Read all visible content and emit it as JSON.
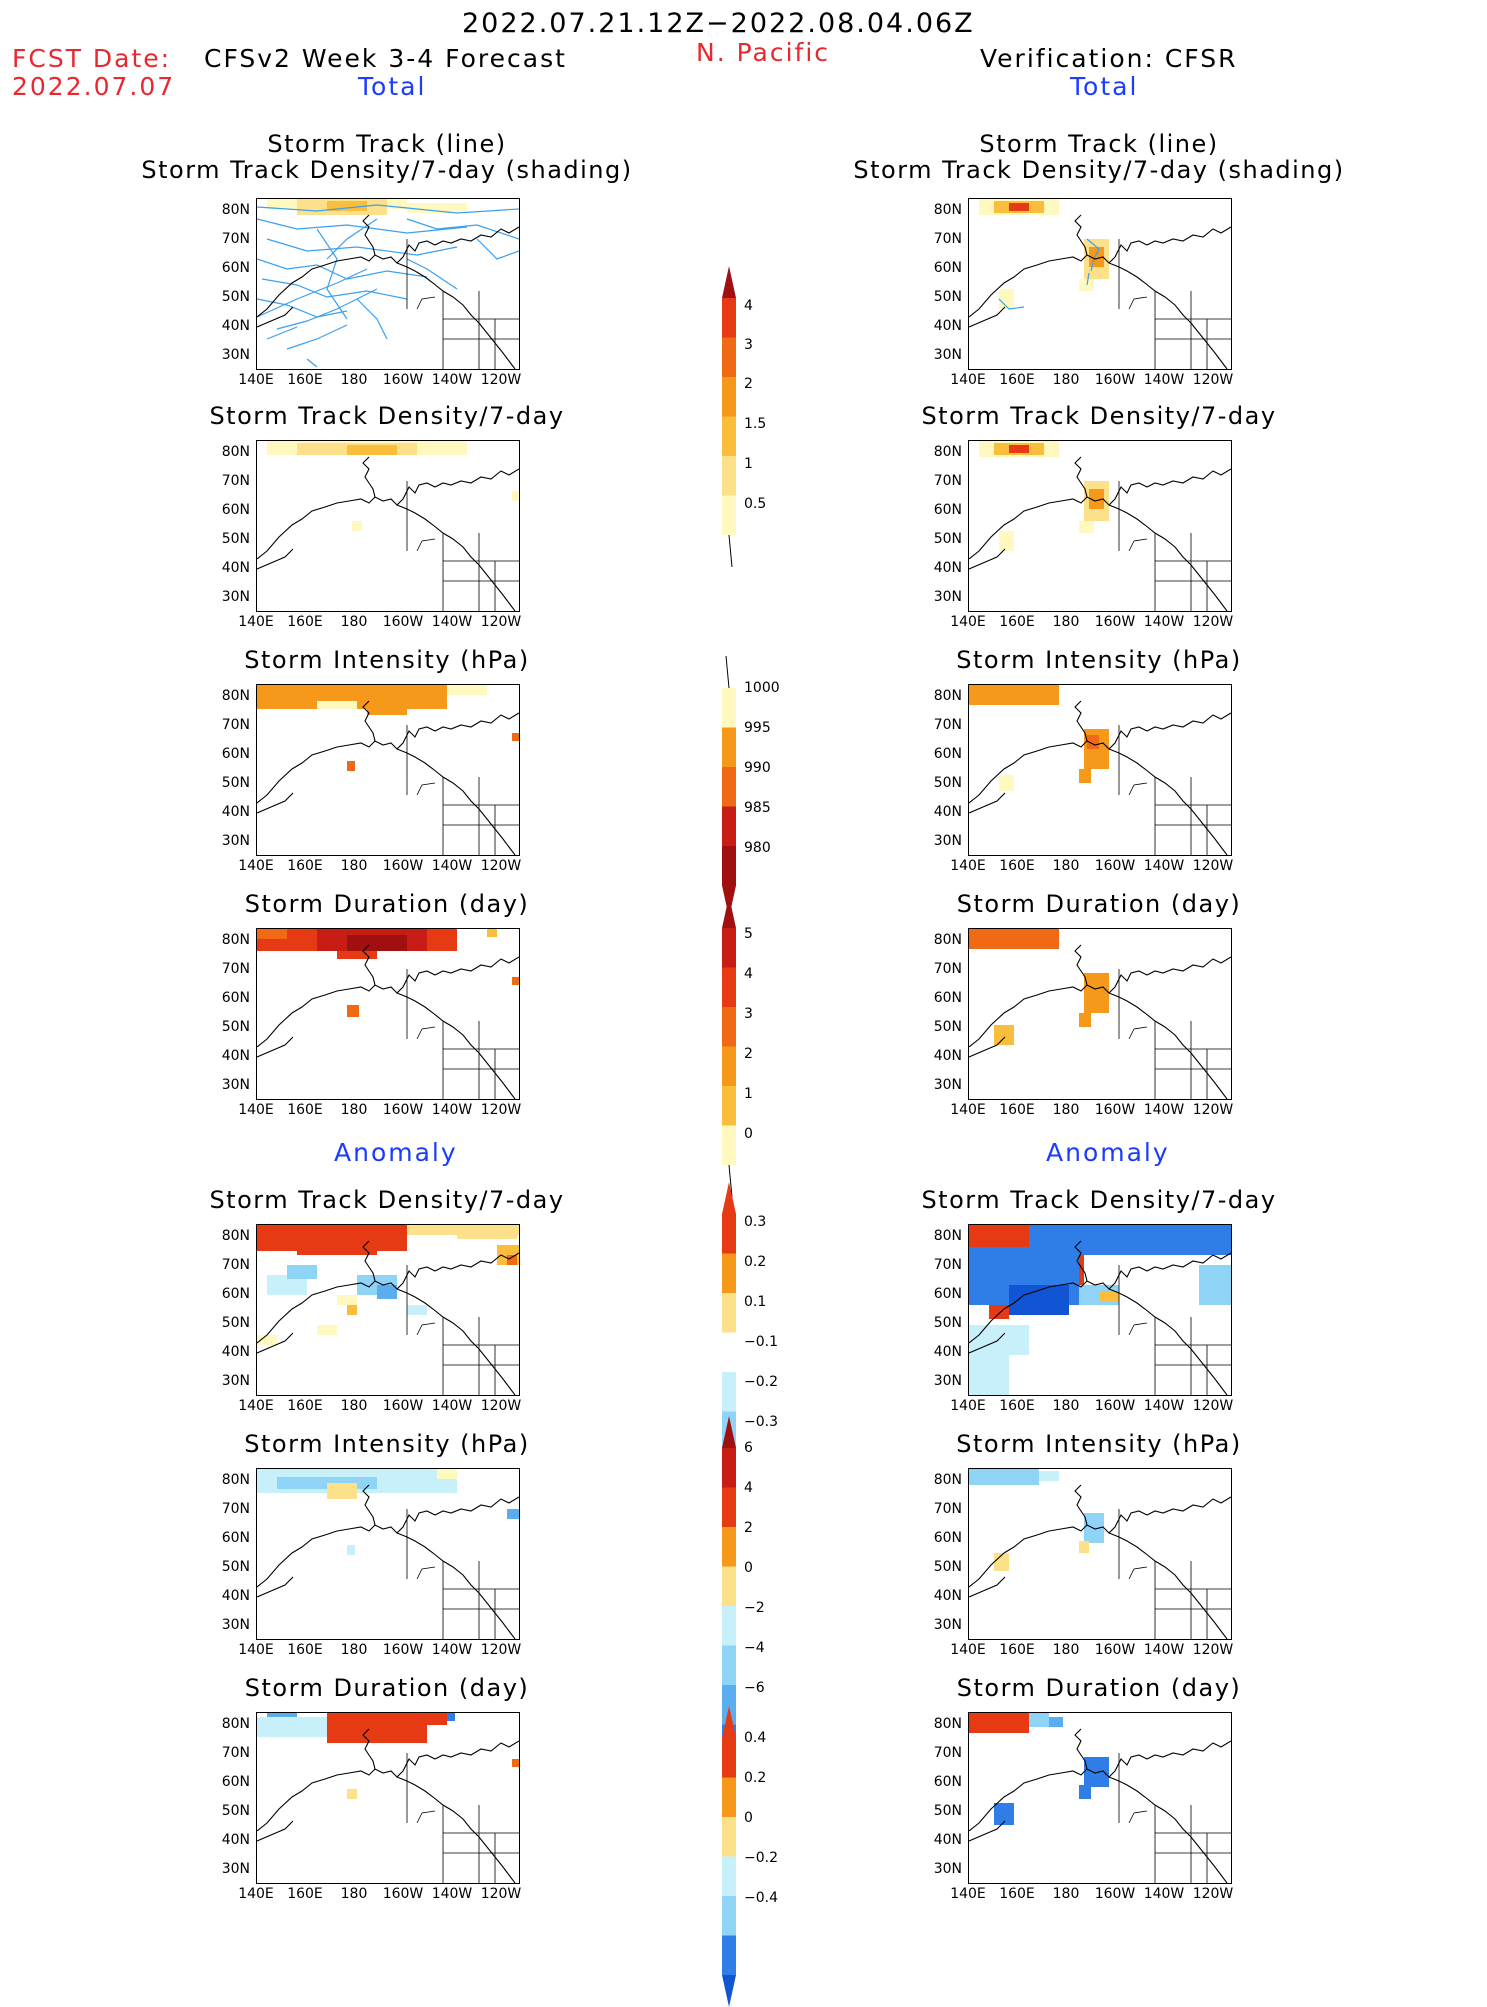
{
  "header": {
    "date_range": "2022.07.21.12Z−2022.08.04.06Z",
    "fcst_label": "FCST Date:",
    "fcst_date": "2022.07.07",
    "forecast_title": "CFSv2 Week 3-4 Forecast",
    "region": "N. Pacific",
    "verification": "Verification: CFSR",
    "left_total": "Total",
    "right_total": "Total",
    "left_anomaly": "Anomaly",
    "right_anomaly": "Anomaly"
  },
  "panels": {
    "track_line": "Storm Track (line)",
    "track_shading": "Storm Track Density/7-day (shading)",
    "density": "Storm Track Density/7-day",
    "intensity": "Storm Intensity (hPa)",
    "duration": "Storm Duration (day)"
  },
  "axes": {
    "lat": [
      "80N",
      "70N",
      "60N",
      "50N",
      "40N",
      "30N"
    ],
    "lon": [
      "140E",
      "160E",
      "180",
      "160W",
      "140W",
      "120W"
    ]
  },
  "colorbars": {
    "density_total": [
      "4",
      "3",
      "2",
      "1.5",
      "1",
      "0.5"
    ],
    "intensity_total": [
      "1000",
      "995",
      "990",
      "985",
      "980"
    ],
    "duration_total": [
      "5",
      "4",
      "3",
      "2",
      "1",
      "0"
    ],
    "density_anom": [
      "0.3",
      "0.2",
      "0.1",
      "−0.1",
      "−0.2",
      "−0.3"
    ],
    "intensity_anom": [
      "6",
      "4",
      "2",
      "0",
      "−2",
      "−4",
      "−6"
    ],
    "duration_anom": [
      "0.4",
      "0.2",
      "0",
      "−0.2",
      "−0.4"
    ]
  },
  "colors": {
    "header_red": "#e8282f",
    "header_blue": "#1a3cff",
    "track_line": "#3aa0f0",
    "warm": [
      "#fff9c0",
      "#fde08a",
      "#fbbd3c",
      "#f6981a",
      "#f06a16",
      "#e63a14",
      "#c81d14",
      "#a01010"
    ],
    "cool": [
      "#c8f0fb",
      "#8fd4f7",
      "#5aaef0",
      "#2f7de6",
      "#1255d4"
    ]
  }
}
